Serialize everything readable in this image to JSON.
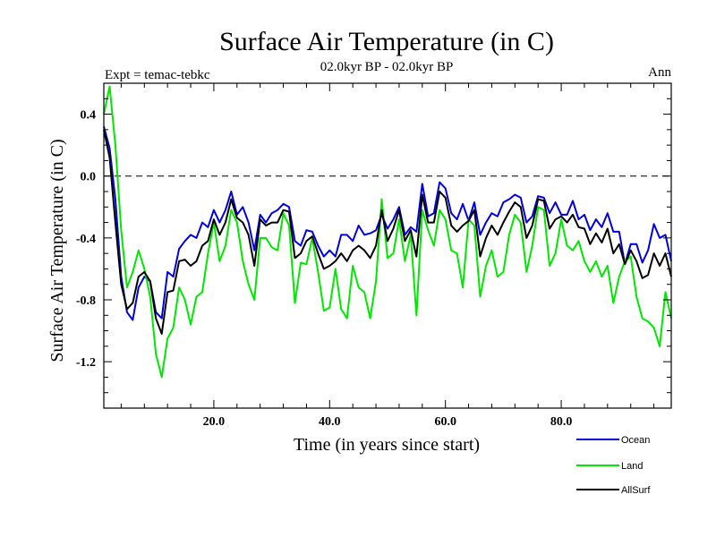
{
  "chart_data": {
    "type": "line",
    "title": "Surface Air Temperature (in C)",
    "subtitle": "02.0kyr BP - 02.0kyr BP",
    "left_label": "Expt = temac-tebkc",
    "right_label": "Ann",
    "xlabel": "Time (in years since start)",
    "ylabel": "Surface Air Temperature (in C)",
    "xlim": [
      1,
      99
    ],
    "ylim": [
      -1.5,
      0.6
    ],
    "x_ticks": [
      20,
      40,
      60,
      80
    ],
    "x_tick_labels": [
      "20.0",
      "40.0",
      "60.0",
      "80.0"
    ],
    "y_ticks": [
      0.4,
      0.0,
      -0.4,
      -0.8,
      -1.2
    ],
    "y_tick_labels": [
      "0.4",
      "0.0",
      "-0.4",
      "-0.8",
      "-1.2"
    ],
    "reference_line": 0.0,
    "x": [
      1,
      2,
      3,
      4,
      5,
      6,
      7,
      8,
      9,
      10,
      11,
      12,
      13,
      14,
      15,
      16,
      17,
      18,
      19,
      20,
      21,
      22,
      23,
      24,
      25,
      26,
      27,
      28,
      29,
      30,
      31,
      32,
      33,
      34,
      35,
      36,
      37,
      38,
      39,
      40,
      41,
      42,
      43,
      44,
      45,
      46,
      47,
      48,
      49,
      50,
      51,
      52,
      53,
      54,
      55,
      56,
      57,
      58,
      59,
      60,
      61,
      62,
      63,
      64,
      65,
      66,
      67,
      68,
      69,
      70,
      71,
      72,
      73,
      74,
      75,
      76,
      77,
      78,
      79,
      80,
      81,
      82,
      83,
      84,
      85,
      86,
      87,
      88,
      89,
      90,
      91,
      92,
      93,
      94,
      95,
      96,
      97,
      98,
      99
    ],
    "series": [
      {
        "name": "Ocean",
        "color": "#0000e0",
        "values": [
          0.32,
          0.18,
          -0.15,
          -0.65,
          -0.88,
          -0.93,
          -0.72,
          -0.65,
          -0.68,
          -0.88,
          -0.92,
          -0.62,
          -0.65,
          -0.47,
          -0.42,
          -0.38,
          -0.4,
          -0.3,
          -0.33,
          -0.22,
          -0.3,
          -0.22,
          -0.1,
          -0.25,
          -0.2,
          -0.3,
          -0.48,
          -0.25,
          -0.3,
          -0.24,
          -0.22,
          -0.18,
          -0.2,
          -0.42,
          -0.45,
          -0.35,
          -0.36,
          -0.45,
          -0.52,
          -0.48,
          -0.52,
          -0.38,
          -0.38,
          -0.42,
          -0.32,
          -0.38,
          -0.37,
          -0.35,
          -0.25,
          -0.34,
          -0.28,
          -0.2,
          -0.38,
          -0.33,
          -0.36,
          -0.05,
          -0.26,
          -0.24,
          -0.04,
          -0.08,
          -0.24,
          -0.28,
          -0.18,
          -0.29,
          -0.17,
          -0.38,
          -0.3,
          -0.24,
          -0.26,
          -0.17,
          -0.15,
          -0.12,
          -0.14,
          -0.3,
          -0.26,
          -0.13,
          -0.14,
          -0.24,
          -0.17,
          -0.25,
          -0.25,
          -0.16,
          -0.28,
          -0.25,
          -0.35,
          -0.28,
          -0.33,
          -0.24,
          -0.36,
          -0.36,
          -0.57,
          -0.44,
          -0.44,
          -0.56,
          -0.48,
          -0.31,
          -0.4,
          -0.38,
          -0.55
        ]
      },
      {
        "name": "Land",
        "color": "#00e800",
        "values": [
          0.4,
          0.58,
          0.2,
          -0.35,
          -0.72,
          -0.62,
          -0.48,
          -0.6,
          -0.78,
          -1.15,
          -1.3,
          -1.05,
          -0.98,
          -0.72,
          -0.8,
          -0.96,
          -0.78,
          -0.75,
          -0.5,
          -0.3,
          -0.55,
          -0.45,
          -0.22,
          -0.3,
          -0.55,
          -0.7,
          -0.8,
          -0.4,
          -0.4,
          -0.46,
          -0.48,
          -0.24,
          -0.32,
          -0.82,
          -0.56,
          -0.57,
          -0.4,
          -0.62,
          -0.87,
          -0.85,
          -0.6,
          -0.86,
          -0.92,
          -0.58,
          -0.72,
          -0.75,
          -0.92,
          -0.68,
          -0.15,
          -0.53,
          -0.5,
          -0.28,
          -0.55,
          -0.38,
          -0.9,
          -0.22,
          -0.35,
          -0.45,
          -0.22,
          -0.28,
          -0.48,
          -0.5,
          -0.72,
          -0.28,
          -0.32,
          -0.78,
          -0.58,
          -0.48,
          -0.65,
          -0.62,
          -0.38,
          -0.25,
          -0.3,
          -0.62,
          -0.45,
          -0.2,
          -0.22,
          -0.58,
          -0.5,
          -0.28,
          -0.45,
          -0.48,
          -0.42,
          -0.55,
          -0.62,
          -0.55,
          -0.65,
          -0.58,
          -0.82,
          -0.65,
          -0.55,
          -0.52,
          -0.78,
          -0.92,
          -0.94,
          -0.98,
          -1.1,
          -0.75,
          -0.92
        ]
      },
      {
        "name": "AllSurf",
        "color": "#000000",
        "values": [
          0.3,
          0.12,
          -0.3,
          -0.7,
          -0.86,
          -0.82,
          -0.65,
          -0.62,
          -0.68,
          -0.92,
          -1.02,
          -0.75,
          -0.74,
          -0.55,
          -0.54,
          -0.58,
          -0.55,
          -0.45,
          -0.42,
          -0.28,
          -0.38,
          -0.3,
          -0.15,
          -0.27,
          -0.3,
          -0.38,
          -0.58,
          -0.28,
          -0.32,
          -0.3,
          -0.3,
          -0.22,
          -0.23,
          -0.53,
          -0.5,
          -0.42,
          -0.39,
          -0.5,
          -0.6,
          -0.58,
          -0.55,
          -0.5,
          -0.55,
          -0.48,
          -0.45,
          -0.48,
          -0.53,
          -0.45,
          -0.22,
          -0.42,
          -0.34,
          -0.22,
          -0.42,
          -0.35,
          -0.52,
          -0.12,
          -0.3,
          -0.3,
          -0.1,
          -0.14,
          -0.32,
          -0.36,
          -0.32,
          -0.29,
          -0.22,
          -0.52,
          -0.4,
          -0.32,
          -0.38,
          -0.3,
          -0.23,
          -0.17,
          -0.2,
          -0.4,
          -0.32,
          -0.15,
          -0.16,
          -0.34,
          -0.28,
          -0.26,
          -0.3,
          -0.25,
          -0.33,
          -0.34,
          -0.44,
          -0.37,
          -0.43,
          -0.34,
          -0.5,
          -0.44,
          -0.57,
          -0.48,
          -0.55,
          -0.66,
          -0.64,
          -0.5,
          -0.58,
          -0.5,
          -0.65
        ]
      }
    ]
  }
}
